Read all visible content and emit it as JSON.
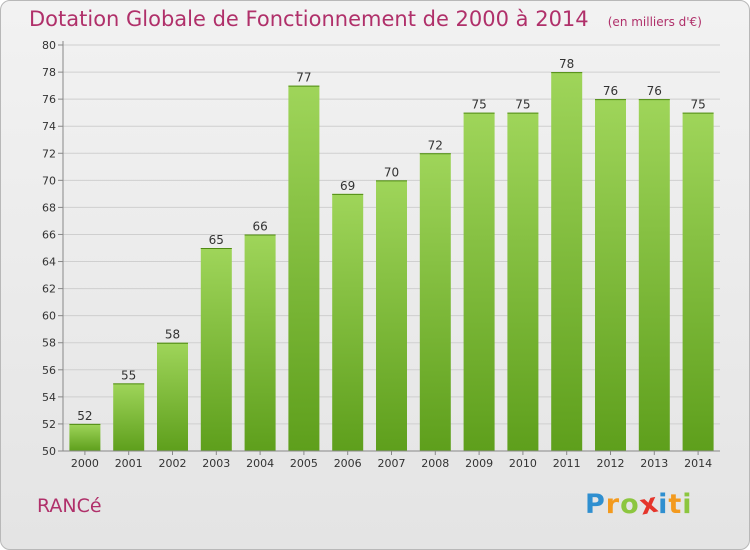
{
  "header": {
    "title": "Dotation Globale de Fonctionnement de 2000 à 2014",
    "subtitle": "(en milliers d'€)"
  },
  "commune": "RANCé",
  "brand": {
    "letters": [
      "P",
      "r",
      "o",
      "x",
      "i",
      "t",
      "i"
    ],
    "colors": [
      "#2f8fd0",
      "#f39a1e",
      "#8cc63f",
      "#e5352b",
      "#2f8fd0",
      "#f39a1e",
      "#8cc63f"
    ]
  },
  "colors": {
    "bar_top": "#9fd55a",
    "bar_bottom": "#5e9f1c",
    "grid": "#cfcfcf",
    "axis": "#888888"
  },
  "chart_data": {
    "type": "bar",
    "title": "Dotation Globale de Fonctionnement de 2000 à 2014",
    "subtitle": "(en milliers d'€)",
    "xlabel": "",
    "ylabel": "",
    "categories": [
      "2000",
      "2001",
      "2002",
      "2003",
      "2004",
      "2005",
      "2006",
      "2007",
      "2008",
      "2009",
      "2010",
      "2011",
      "2012",
      "2013",
      "2014"
    ],
    "values": [
      52,
      55,
      58,
      65,
      66,
      77,
      69,
      70,
      72,
      75,
      75,
      78,
      76,
      76,
      75
    ],
    "ylim": [
      50,
      80
    ],
    "yticks": [
      50,
      52,
      54,
      56,
      58,
      60,
      62,
      64,
      66,
      68,
      70,
      72,
      74,
      76,
      78,
      80
    ],
    "grid": true,
    "data_labels": true
  }
}
